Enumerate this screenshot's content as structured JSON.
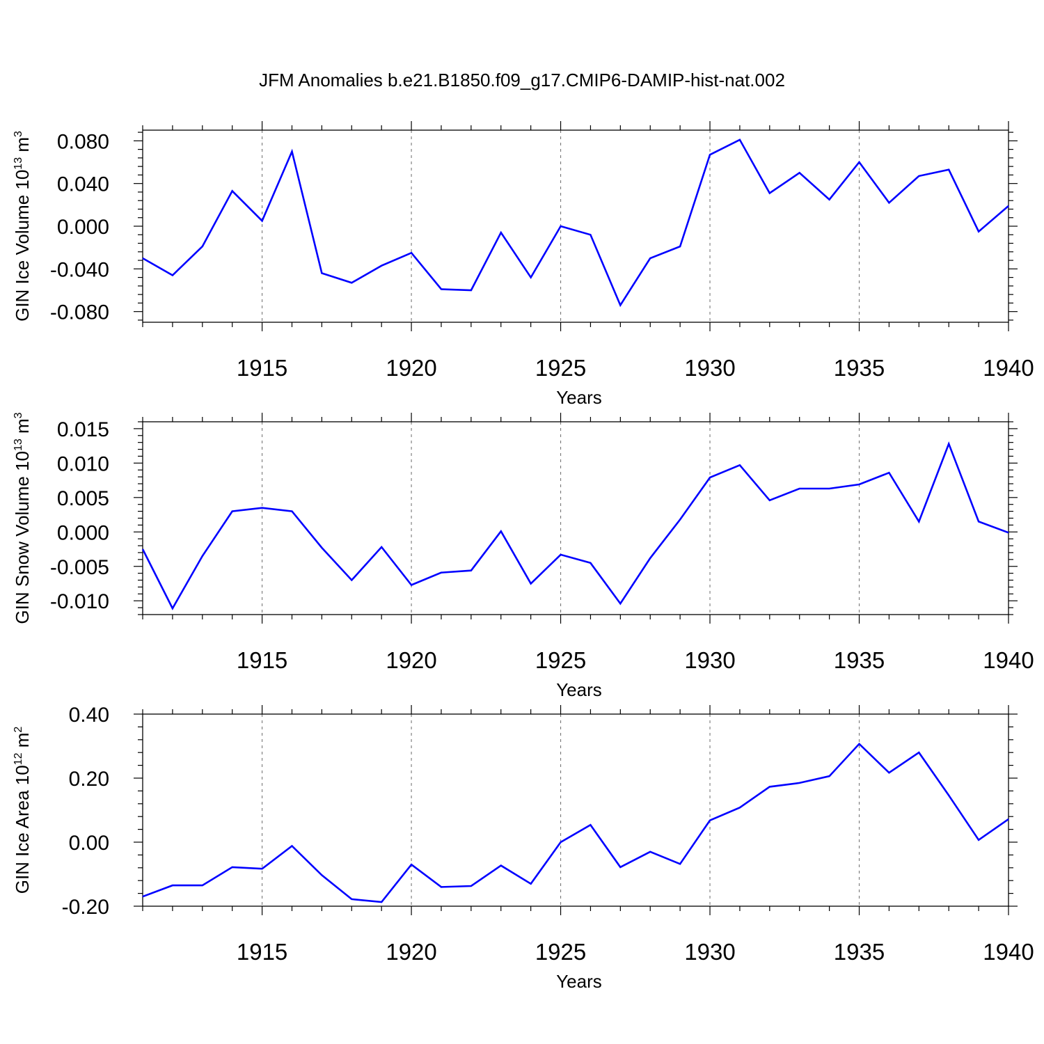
{
  "title": "JFM Anomalies b.e21.B1850.f09_g17.CMIP6-DAMIP-hist-nat.002",
  "colors": {
    "line": "#0000ff",
    "axis": "#000000",
    "grid": "#777777"
  },
  "chart_data": [
    {
      "type": "line",
      "ylabel_main": "GIN Ice Volume 10",
      "ylabel_exp": "13",
      "ylabel_unit": " m",
      "ylabel_unit_exp": "3",
      "xlabel": "Years",
      "xlim": [
        1911,
        1940
      ],
      "ylim": [
        -0.09,
        0.09
      ],
      "xticks": [
        1915,
        1920,
        1925,
        1930,
        1935,
        1940
      ],
      "xtick_labels": [
        "1915",
        "1920",
        "1925",
        "1930",
        "1935",
        "1940"
      ],
      "yticks": [
        -0.08,
        -0.04,
        0.0,
        0.04,
        0.08
      ],
      "ytick_labels": [
        "-0.080",
        "-0.040",
        "0.000",
        "0.040",
        "0.080"
      ],
      "grid_x": [
        1915,
        1920,
        1925,
        1930,
        1935
      ],
      "series": [
        {
          "name": "GIN Ice Volume",
          "x": [
            1911,
            1912,
            1913,
            1914,
            1915,
            1916,
            1917,
            1918,
            1919,
            1920,
            1921,
            1922,
            1923,
            1924,
            1925,
            1926,
            1927,
            1928,
            1929,
            1930,
            1931,
            1932,
            1933,
            1934,
            1935,
            1936,
            1937,
            1938,
            1939,
            1940
          ],
          "values": [
            -0.03,
            -0.046,
            -0.019,
            0.033,
            0.005,
            0.07,
            -0.044,
            -0.053,
            -0.037,
            -0.025,
            -0.059,
            -0.06,
            -0.006,
            -0.048,
            0.0,
            -0.008,
            -0.074,
            -0.03,
            -0.019,
            0.067,
            0.081,
            0.031,
            0.05,
            0.025,
            0.06,
            0.022,
            0.047,
            0.053,
            -0.005,
            0.019
          ]
        }
      ]
    },
    {
      "type": "line",
      "ylabel_main": "GIN Snow Volume 10",
      "ylabel_exp": "13",
      "ylabel_unit": " m",
      "ylabel_unit_exp": "3",
      "xlabel": "Years",
      "xlim": [
        1911,
        1940
      ],
      "ylim": [
        -0.012,
        0.016
      ],
      "xticks": [
        1915,
        1920,
        1925,
        1930,
        1935,
        1940
      ],
      "xtick_labels": [
        "1915",
        "1920",
        "1925",
        "1930",
        "1935",
        "1940"
      ],
      "yticks": [
        -0.01,
        -0.005,
        0.0,
        0.005,
        0.01,
        0.015
      ],
      "ytick_labels": [
        "-0.010",
        "-0.005",
        "0.000",
        "0.005",
        "0.010",
        "0.015"
      ],
      "grid_x": [
        1915,
        1920,
        1925,
        1930,
        1935
      ],
      "series": [
        {
          "name": "GIN Snow Volume",
          "x": [
            1911,
            1912,
            1913,
            1914,
            1915,
            1916,
            1917,
            1918,
            1919,
            1920,
            1921,
            1922,
            1923,
            1924,
            1925,
            1926,
            1927,
            1928,
            1929,
            1930,
            1931,
            1932,
            1933,
            1934,
            1935,
            1936,
            1937,
            1938,
            1939,
            1940
          ],
          "values": [
            -0.0025,
            -0.0111,
            -0.0035,
            0.003,
            0.0035,
            0.003,
            -0.0023,
            -0.007,
            -0.0022,
            -0.0077,
            -0.0059,
            -0.0056,
            0.0001,
            -0.0075,
            -0.0033,
            -0.0045,
            -0.0104,
            -0.0038,
            0.0018,
            0.0079,
            0.0097,
            0.0046,
            0.0063,
            0.0063,
            0.0069,
            0.0086,
            0.0015,
            0.0128,
            0.0015,
            -0.0001
          ]
        }
      ]
    },
    {
      "type": "line",
      "ylabel_main": "GIN Ice Area 10",
      "ylabel_exp": "12",
      "ylabel_unit": " m",
      "ylabel_unit_exp": "2",
      "xlabel": "Years",
      "xlim": [
        1911,
        1940
      ],
      "ylim": [
        -0.2,
        0.4
      ],
      "xticks": [
        1915,
        1920,
        1925,
        1930,
        1935,
        1940
      ],
      "xtick_labels": [
        "1915",
        "1920",
        "1925",
        "1930",
        "1935",
        "1940"
      ],
      "yticks": [
        -0.2,
        0.0,
        0.2,
        0.4
      ],
      "ytick_labels": [
        "-0.20",
        "0.00",
        "0.20",
        "0.40"
      ],
      "grid_x": [
        1915,
        1920,
        1925,
        1930,
        1935
      ],
      "series": [
        {
          "name": "GIN Ice Area",
          "x": [
            1911,
            1912,
            1913,
            1914,
            1915,
            1916,
            1917,
            1918,
            1919,
            1920,
            1921,
            1922,
            1923,
            1924,
            1925,
            1926,
            1927,
            1928,
            1929,
            1930,
            1931,
            1932,
            1933,
            1934,
            1935,
            1936,
            1937,
            1938,
            1939,
            1940
          ],
          "values": [
            -0.17,
            -0.135,
            -0.135,
            -0.078,
            -0.083,
            -0.012,
            -0.103,
            -0.178,
            -0.187,
            -0.07,
            -0.14,
            -0.137,
            -0.073,
            -0.13,
            0.0,
            0.054,
            -0.078,
            -0.03,
            -0.068,
            0.068,
            0.108,
            0.173,
            0.185,
            0.206,
            0.307,
            0.217,
            0.28,
            0.146,
            0.007,
            0.072
          ]
        }
      ]
    }
  ]
}
